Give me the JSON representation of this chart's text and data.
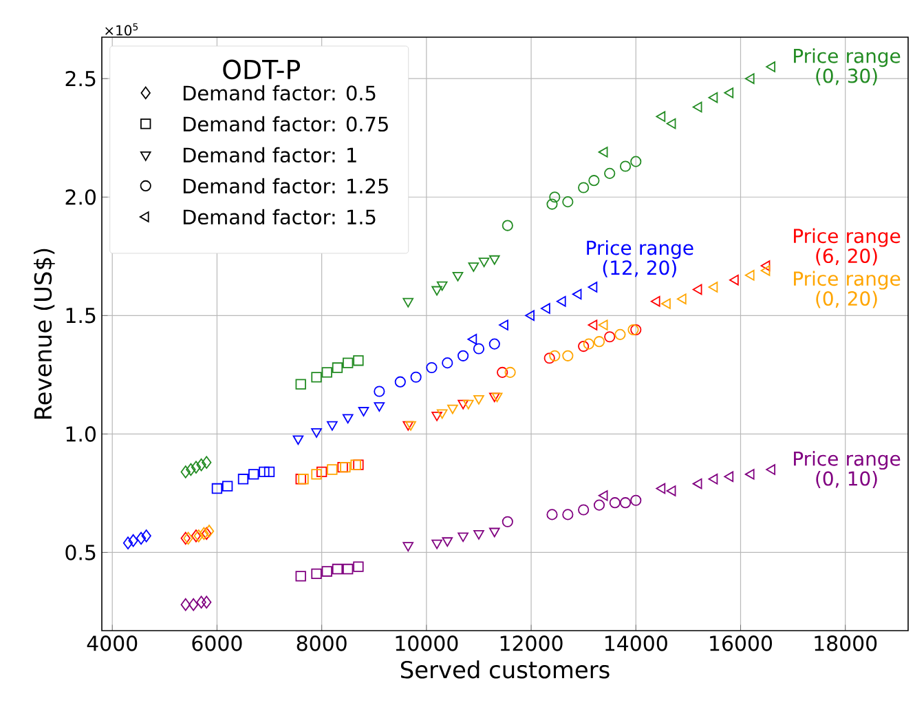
{
  "chart_data": {
    "type": "scatter",
    "xlabel": "Served customers",
    "ylabel": "Revenue (US$)",
    "legend_title": "ODT-P",
    "xlim": [
      3800,
      19200
    ],
    "ylim": [
      0.17,
      2.675
    ],
    "xticks": [
      4000,
      6000,
      8000,
      10000,
      12000,
      14000,
      16000,
      18000
    ],
    "yticks": [
      {
        "value": 0.5,
        "label": "0.5"
      },
      {
        "value": 1.0,
        "label": "1.0"
      },
      {
        "value": 1.5,
        "label": "1.5"
      },
      {
        "value": 2.0,
        "label": "2.0"
      },
      {
        "value": 2.5,
        "label": "2.5"
      }
    ],
    "grid": true,
    "annotations": [
      "×10$^{5}$",
      "Demand factor: 0.5",
      "Demand factor: 0.75",
      "Demand factor: 1",
      "Demand factor: 1.25",
      "Demand factor: 1.5"
    ],
    "series": [
      {
        "color": "#228b22",
        "marker": "diamond",
        "x": [
          5400,
          5500,
          5600,
          5700,
          5800
        ],
        "values": [
          0.84,
          0.85,
          0.86,
          0.87,
          0.88
        ]
      },
      {
        "color": "#228b22",
        "marker": "square",
        "x": [
          7600,
          7900,
          8100,
          8300,
          8500,
          8700
        ],
        "values": [
          1.21,
          1.24,
          1.26,
          1.28,
          1.3,
          1.31
        ]
      },
      {
        "color": "#228b22",
        "marker": "triangle-down",
        "x": [
          9650,
          10200,
          10300,
          10600,
          10900,
          11100,
          11300
        ],
        "values": [
          1.56,
          1.61,
          1.63,
          1.67,
          1.71,
          1.73,
          1.74
        ]
      },
      {
        "color": "#228b22",
        "marker": "circle",
        "x": [
          11550,
          12400,
          12450,
          12700,
          13000,
          13200,
          13500,
          13800,
          14000
        ],
        "values": [
          1.88,
          1.97,
          2.0,
          1.98,
          2.04,
          2.07,
          2.1,
          2.13,
          2.15
        ]
      },
      {
        "name": "Price range (0, 30)",
        "color": "#228b22",
        "marker": "triangle-left",
        "x": [
          13400,
          14500,
          14700,
          15200,
          15500,
          15800,
          16200,
          16600
        ],
        "values": [
          2.19,
          2.34,
          2.31,
          2.38,
          2.42,
          2.44,
          2.5,
          2.55
        ]
      },
      {
        "color": "#0000ff",
        "marker": "diamond",
        "x": [
          4300,
          4400,
          4550,
          4650
        ],
        "values": [
          0.54,
          0.55,
          0.56,
          0.57
        ]
      },
      {
        "color": "#0000ff",
        "marker": "square",
        "x": [
          6000,
          6200,
          6500,
          6700,
          6900,
          7000
        ],
        "values": [
          0.77,
          0.78,
          0.81,
          0.83,
          0.84,
          0.84
        ]
      },
      {
        "color": "#0000ff",
        "marker": "triangle-down",
        "x": [
          7550,
          7900,
          8200,
          8500,
          8800,
          9100
        ],
        "values": [
          0.98,
          1.01,
          1.04,
          1.07,
          1.1,
          1.12
        ]
      },
      {
        "color": "#0000ff",
        "marker": "circle",
        "x": [
          9100,
          9500,
          9800,
          10100,
          10400,
          10700,
          11000,
          11300
        ],
        "values": [
          1.18,
          1.22,
          1.24,
          1.28,
          1.3,
          1.33,
          1.36,
          1.38
        ]
      },
      {
        "name": "Price range (12, 20)",
        "color": "#0000ff",
        "marker": "triangle-left",
        "x": [
          10900,
          11500,
          12000,
          12300,
          12600,
          12900,
          13200
        ],
        "values": [
          1.4,
          1.46,
          1.5,
          1.53,
          1.56,
          1.59,
          1.62
        ]
      },
      {
        "color": "#ff0000",
        "marker": "diamond",
        "x": [
          5400,
          5600,
          5800
        ],
        "values": [
          0.56,
          0.57,
          0.58
        ]
      },
      {
        "color": "#ff0000",
        "marker": "square",
        "x": [
          7600,
          8000,
          8400,
          8700
        ],
        "values": [
          0.81,
          0.84,
          0.86,
          0.87
        ]
      },
      {
        "color": "#ff0000",
        "marker": "triangle-down",
        "x": [
          9650,
          10200,
          10700,
          11300
        ],
        "values": [
          1.04,
          1.08,
          1.13,
          1.16
        ]
      },
      {
        "color": "#ff0000",
        "marker": "circle",
        "x": [
          11450,
          12350,
          13000,
          13500,
          14000
        ],
        "values": [
          1.26,
          1.32,
          1.37,
          1.41,
          1.44
        ]
      },
      {
        "name": "Price range (6, 20)",
        "color": "#ff0000",
        "marker": "triangle-left",
        "x": [
          13200,
          14400,
          15200,
          15900,
          16500
        ],
        "values": [
          1.46,
          1.56,
          1.61,
          1.65,
          1.71
        ]
      },
      {
        "color": "#ffa500",
        "marker": "diamond",
        "x": [
          5450,
          5650,
          5750,
          5850
        ],
        "values": [
          0.56,
          0.57,
          0.58,
          0.59
        ]
      },
      {
        "color": "#ffa500",
        "marker": "square",
        "x": [
          7650,
          7900,
          8200,
          8450,
          8650
        ],
        "values": [
          0.81,
          0.83,
          0.85,
          0.86,
          0.87
        ]
      },
      {
        "color": "#ffa500",
        "marker": "triangle-down",
        "x": [
          9700,
          10300,
          10500,
          10800,
          11000,
          11350
        ],
        "values": [
          1.04,
          1.09,
          1.11,
          1.13,
          1.15,
          1.16
        ]
      },
      {
        "color": "#ffa500",
        "marker": "circle",
        "x": [
          11600,
          12450,
          12700,
          13100,
          13300,
          13700,
          13950
        ],
        "values": [
          1.26,
          1.33,
          1.33,
          1.38,
          1.39,
          1.42,
          1.44
        ]
      },
      {
        "name": "Price range (0, 20)",
        "color": "#ffa500",
        "marker": "triangle-left",
        "x": [
          13400,
          14600,
          14900,
          15500,
          16200,
          16500
        ],
        "values": [
          1.46,
          1.55,
          1.57,
          1.62,
          1.67,
          1.69
        ]
      },
      {
        "color": "#800080",
        "marker": "diamond",
        "x": [
          5400,
          5550,
          5700,
          5800
        ],
        "values": [
          0.28,
          0.28,
          0.29,
          0.29
        ]
      },
      {
        "color": "#800080",
        "marker": "square",
        "x": [
          7600,
          7900,
          8100,
          8300,
          8500,
          8700
        ],
        "values": [
          0.4,
          0.41,
          0.42,
          0.43,
          0.43,
          0.44
        ]
      },
      {
        "color": "#800080",
        "marker": "triangle-down",
        "x": [
          9650,
          10200,
          10400,
          10700,
          11000,
          11300
        ],
        "values": [
          0.53,
          0.54,
          0.55,
          0.57,
          0.58,
          0.59
        ]
      },
      {
        "color": "#800080",
        "marker": "circle",
        "x": [
          11550,
          12400,
          12700,
          13000,
          13300,
          13600,
          13800,
          14000
        ],
        "values": [
          0.63,
          0.66,
          0.66,
          0.68,
          0.7,
          0.71,
          0.71,
          0.72
        ]
      },
      {
        "name": "Price range (0, 10)",
        "color": "#800080",
        "marker": "triangle-left",
        "x": [
          13400,
          14500,
          14700,
          15200,
          15500,
          15800,
          16200,
          16600
        ],
        "values": [
          0.74,
          0.77,
          0.76,
          0.79,
          0.81,
          0.82,
          0.83,
          0.85
        ]
      }
    ]
  }
}
